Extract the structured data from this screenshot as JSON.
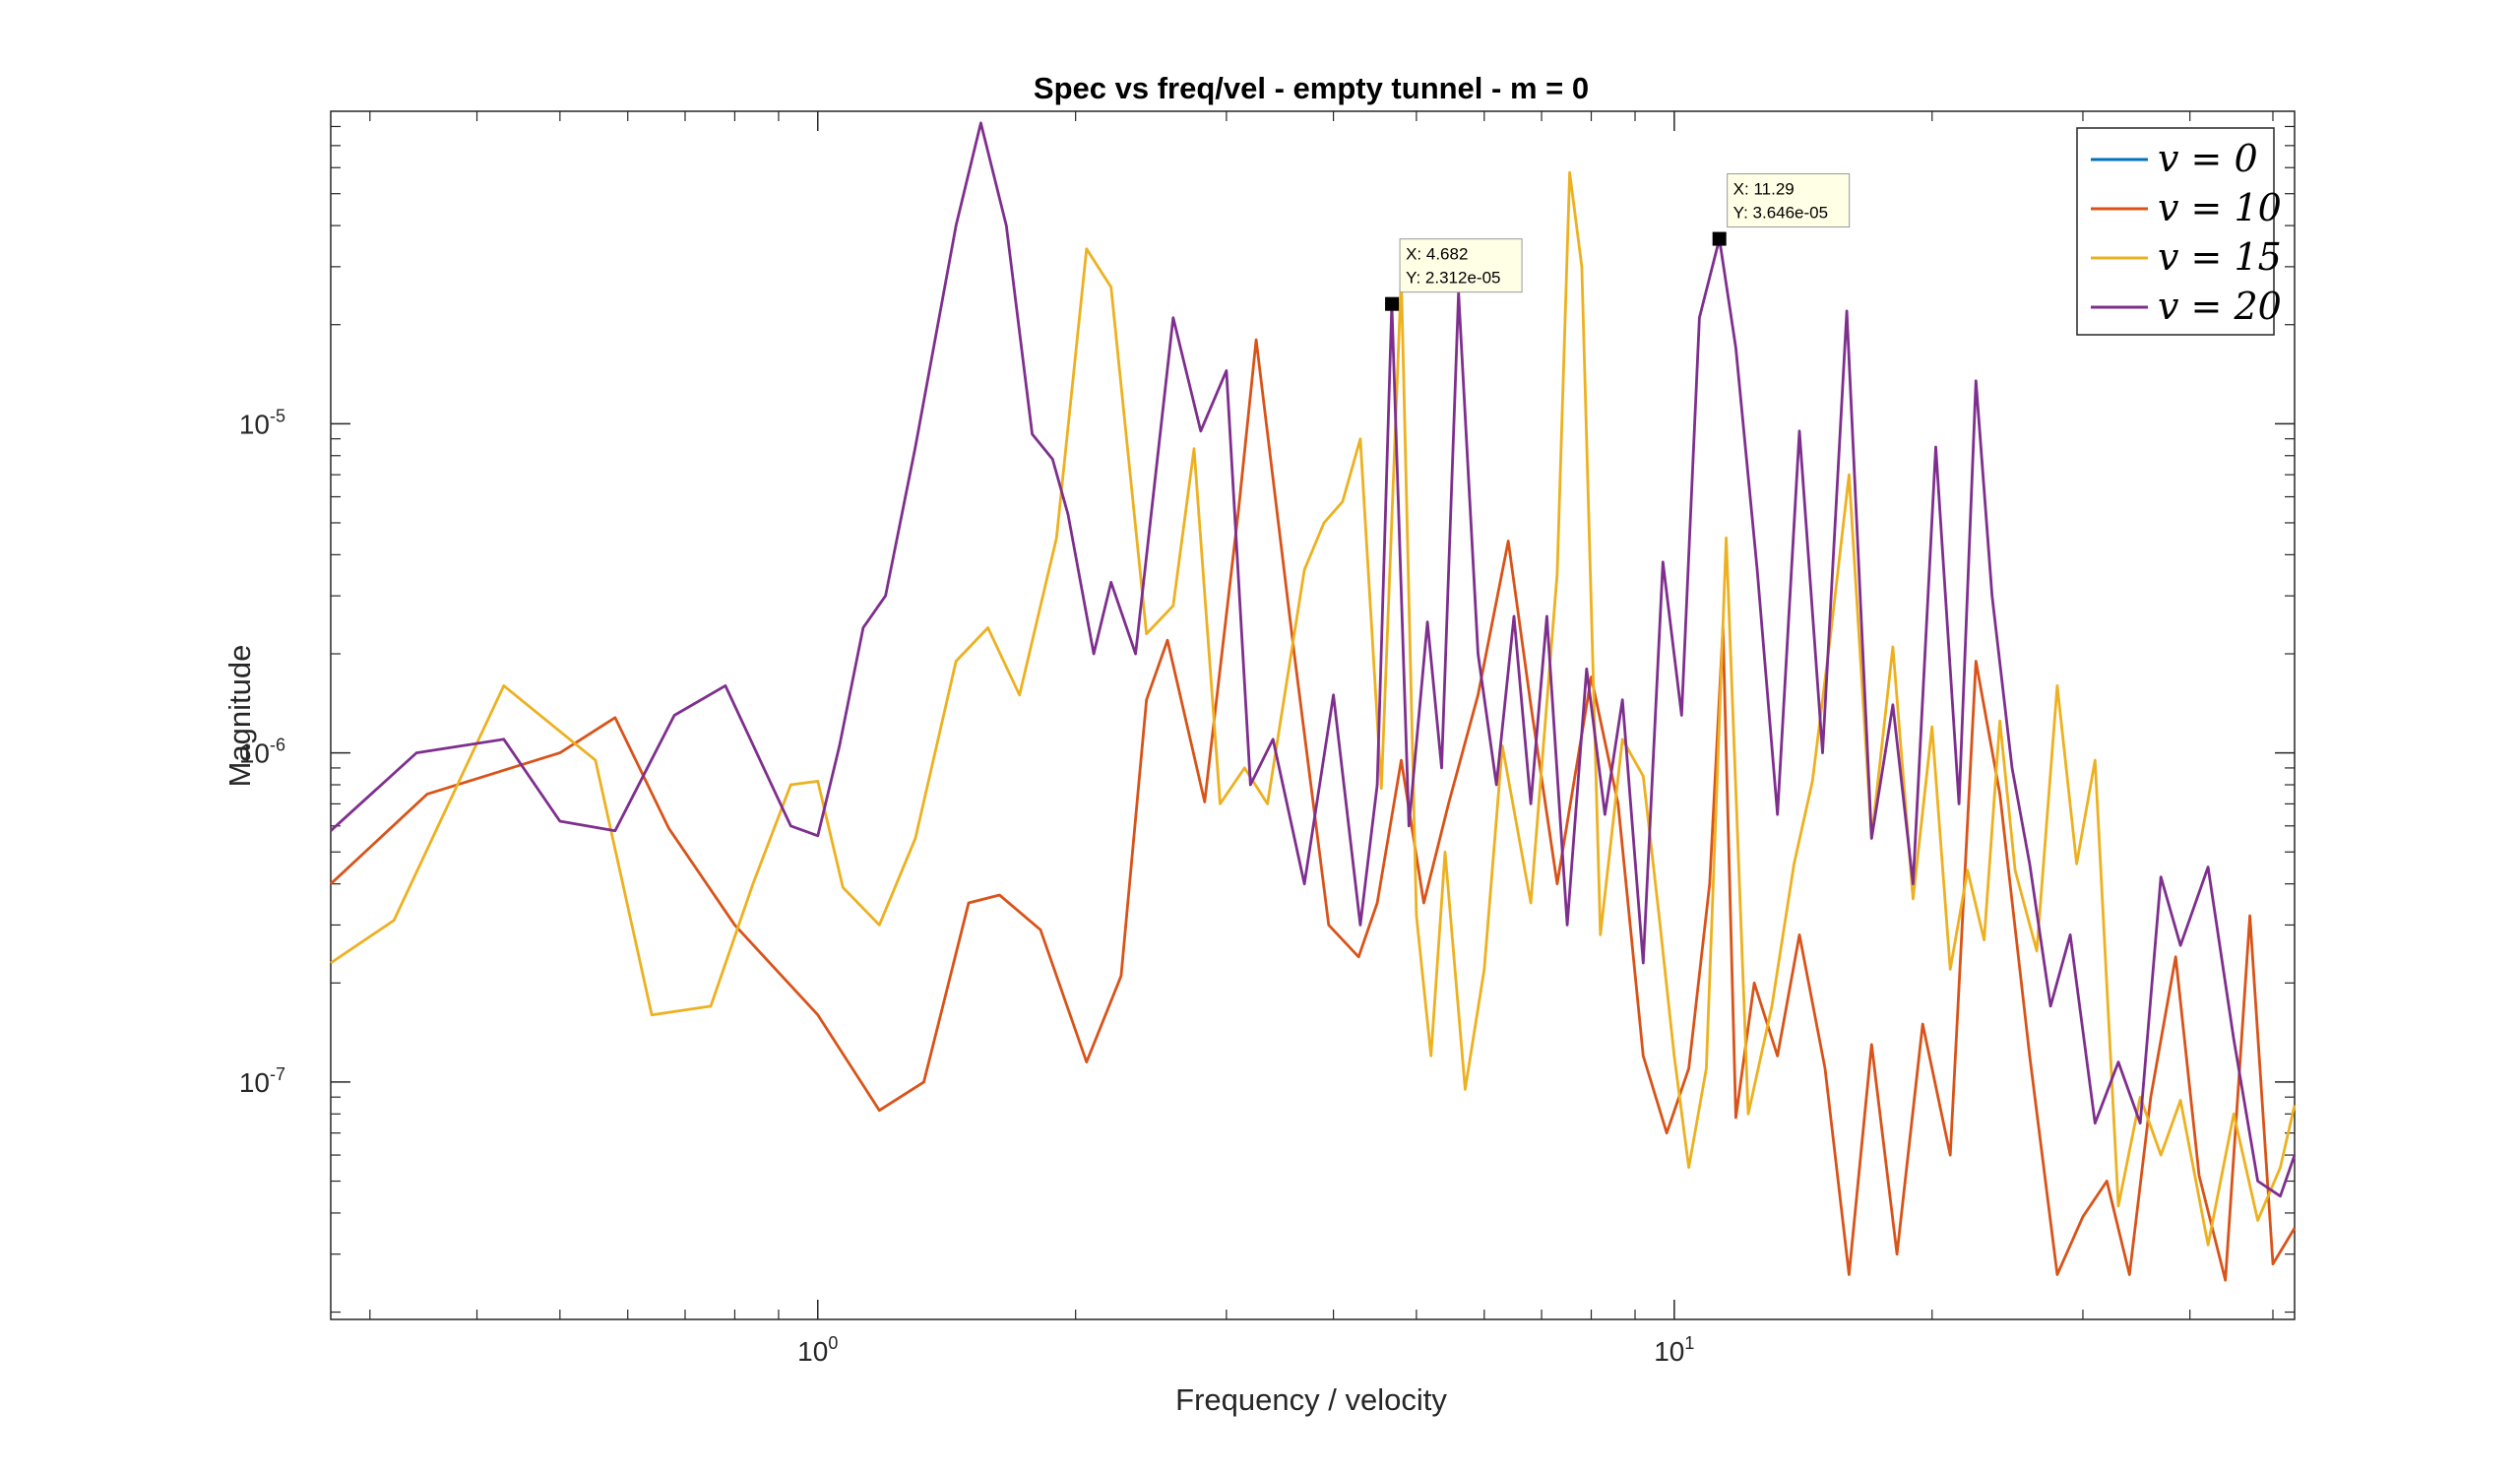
{
  "chart_data": {
    "type": "line",
    "title": "Spec vs freq/vel - empty tunnel - m = 0",
    "xlabel": "Frequency / velocity",
    "ylabel": "Magnitude",
    "x_scale": "log",
    "y_scale": "log",
    "xlim": [
      0.27,
      53
    ],
    "ylim": [
      1.9e-08,
      8.9e-05
    ],
    "x_ticks": [
      {
        "value": 1,
        "base": "10",
        "exp": "0"
      },
      {
        "value": 10,
        "base": "10",
        "exp": "1"
      }
    ],
    "y_ticks": [
      {
        "value": 1e-05,
        "base": "10",
        "exp": "-5"
      },
      {
        "value": 1e-06,
        "base": "10",
        "exp": "-6"
      },
      {
        "value": 1e-07,
        "base": "10",
        "exp": "-7"
      }
    ],
    "grid": false,
    "legend_position": "top-right",
    "series": [
      {
        "name": "v = 0",
        "legend_label": "v = 0",
        "color": "#0072BD",
        "x": [],
        "y": []
      },
      {
        "name": "v = 10",
        "legend_label": "v = 10",
        "color": "#D95319",
        "x": [
          0.27,
          0.35,
          0.5,
          0.58,
          0.67,
          0.8,
          1.0,
          1.18,
          1.33,
          1.5,
          1.63,
          1.82,
          2.06,
          2.26,
          2.42,
          2.56,
          2.83,
          3.1,
          3.25,
          3.6,
          3.95,
          4.28,
          4.5,
          4.8,
          5.1,
          5.45,
          5.9,
          6.4,
          6.8,
          7.3,
          8.0,
          8.6,
          9.2,
          9.8,
          10.4,
          11.0,
          11.4,
          11.8,
          12.4,
          13.2,
          14.0,
          15.0,
          16.0,
          17.0,
          18.2,
          19.5,
          21.0,
          22.5,
          24.0,
          26.0,
          28.0,
          30.0,
          32.0,
          34.0,
          36.0,
          38.5,
          41.0,
          44.0,
          47.0,
          50.0,
          53.0
        ],
        "y": [
          4e-07,
          7.5e-07,
          1e-06,
          1.28e-06,
          5.9e-07,
          3e-07,
          1.6e-07,
          8.2e-08,
          1e-07,
          3.5e-07,
          3.7e-07,
          2.9e-07,
          1.15e-07,
          2.1e-07,
          1.45e-06,
          2.2e-06,
          7.1e-07,
          5.5e-06,
          1.8e-05,
          2e-06,
          3e-07,
          2.4e-07,
          3.5e-07,
          9.5e-07,
          3.5e-07,
          7e-07,
          1.5e-06,
          4.4e-06,
          1.4e-06,
          4e-07,
          1.7e-06,
          7e-07,
          1.2e-07,
          7e-08,
          1.1e-07,
          4e-07,
          2.4e-06,
          7.8e-08,
          2e-07,
          1.2e-07,
          2.8e-07,
          1.1e-07,
          2.6e-08,
          1.3e-07,
          3e-08,
          1.5e-07,
          6e-08,
          1.9e-06,
          7.5e-07,
          1.2e-07,
          2.6e-08,
          3.9e-08,
          5e-08,
          2.6e-08,
          9e-08,
          2.4e-07,
          5.2e-08,
          2.5e-08,
          3.2e-07,
          2.8e-08,
          3.6e-08
        ]
      },
      {
        "name": "v = 15",
        "legend_label": "v = 15",
        "color": "#EDB120",
        "x": [
          0.27,
          0.32,
          0.43,
          0.55,
          0.64,
          0.75,
          0.84,
          0.93,
          1.0,
          1.07,
          1.18,
          1.3,
          1.45,
          1.58,
          1.72,
          1.9,
          2.06,
          2.2,
          2.42,
          2.6,
          2.75,
          2.95,
          3.15,
          3.35,
          3.7,
          3.9,
          4.1,
          4.3,
          4.55,
          4.8,
          5.0,
          5.2,
          5.4,
          5.7,
          6.0,
          6.3,
          6.8,
          7.3,
          7.55,
          7.8,
          8.2,
          8.7,
          9.2,
          9.6,
          10.0,
          10.4,
          10.9,
          11.5,
          12.2,
          13.0,
          13.8,
          14.5,
          15.2,
          16.0,
          17.0,
          18.0,
          19.0,
          20.0,
          21.0,
          22.0,
          23.0,
          24.0,
          25.0,
          26.5,
          28.0,
          29.5,
          31.0,
          33.0,
          35.0,
          37.0,
          39.0,
          42.0,
          45.0,
          48.0,
          51.0,
          53.0
        ],
        "y": [
          2.3e-07,
          3.1e-07,
          1.6e-06,
          9.5e-07,
          1.6e-07,
          1.7e-07,
          4e-07,
          8e-07,
          8.2e-07,
          3.9e-07,
          3e-07,
          5.5e-07,
          1.9e-06,
          2.4e-06,
          1.5e-06,
          4.5e-06,
          3.4e-05,
          2.6e-05,
          2.3e-06,
          2.8e-06,
          8.4e-06,
          7e-07,
          9e-07,
          7e-07,
          3.6e-06,
          5e-06,
          5.8e-06,
          9e-06,
          7.8e-07,
          2.8e-05,
          3.2e-07,
          1.2e-07,
          5e-07,
          9.5e-08,
          2.2e-07,
          1.05e-06,
          3.5e-07,
          3.5e-06,
          5.8e-05,
          3e-05,
          2.8e-07,
          1.1e-06,
          8.5e-07,
          3.2e-07,
          1.2e-07,
          5.5e-08,
          1.1e-07,
          4.5e-06,
          8e-08,
          1.7e-07,
          4.6e-07,
          8.2e-07,
          2.2e-06,
          7e-06,
          5.5e-07,
          2.1e-06,
          3.6e-07,
          1.2e-06,
          2.2e-07,
          4.4e-07,
          2.7e-07,
          1.25e-06,
          4.4e-07,
          2.5e-07,
          1.6e-06,
          4.6e-07,
          9.5e-07,
          4.2e-08,
          9e-08,
          6e-08,
          8.8e-08,
          3.2e-08,
          8e-08,
          3.8e-08,
          5.5e-08,
          8.5e-08
        ]
      },
      {
        "name": "v = 20",
        "legend_label": "v = 20",
        "color": "#7E2F8E",
        "x": [
          0.27,
          0.34,
          0.43,
          0.5,
          0.58,
          0.68,
          0.78,
          0.93,
          1.0,
          1.06,
          1.13,
          1.2,
          1.3,
          1.45,
          1.55,
          1.66,
          1.78,
          1.88,
          1.96,
          2.1,
          2.2,
          2.35,
          2.6,
          2.8,
          3.0,
          3.2,
          3.4,
          3.7,
          4.0,
          4.3,
          4.5,
          4.68,
          4.9,
          5.15,
          5.35,
          5.6,
          5.9,
          6.2,
          6.5,
          6.8,
          7.1,
          7.5,
          7.9,
          8.3,
          8.7,
          9.2,
          9.7,
          10.2,
          10.7,
          11.29,
          11.8,
          12.5,
          13.2,
          14.0,
          14.9,
          15.9,
          17.0,
          18.0,
          19.0,
          20.2,
          21.5,
          22.5,
          23.5,
          24.8,
          26.0,
          27.5,
          29.0,
          31.0,
          33.0,
          35.0,
          37.0,
          39.0,
          42.0,
          45.0,
          48.0,
          51.0,
          53.0
        ],
        "y": [
          5.8e-07,
          1e-06,
          1.1e-06,
          6.2e-07,
          5.8e-07,
          1.3e-06,
          1.6e-06,
          6e-07,
          5.6e-07,
          1.05e-06,
          2.4e-06,
          3e-06,
          8.5e-06,
          4e-05,
          8.2e-05,
          4e-05,
          9.3e-06,
          7.8e-06,
          5.3e-06,
          2e-06,
          3.3e-06,
          2e-06,
          2.1e-05,
          9.5e-06,
          1.45e-05,
          8e-07,
          1.1e-06,
          4e-07,
          1.5e-06,
          3e-07,
          8e-07,
          2.312e-05,
          6e-07,
          2.5e-06,
          9e-07,
          2.5e-05,
          2e-06,
          8e-07,
          2.6e-06,
          7e-07,
          2.6e-06,
          3e-07,
          1.8e-06,
          6.5e-07,
          1.45e-06,
          2.3e-07,
          3.8e-06,
          1.3e-06,
          2.1e-05,
          3.646e-05,
          1.7e-05,
          3.6e-06,
          6.5e-07,
          9.5e-06,
          1e-06,
          2.2e-05,
          5.5e-07,
          1.4e-06,
          4e-07,
          8.5e-06,
          7e-07,
          1.35e-05,
          3e-06,
          9e-07,
          4.6e-07,
          1.7e-07,
          2.8e-07,
          7.5e-08,
          1.15e-07,
          7.5e-08,
          4.2e-07,
          2.6e-07,
          4.5e-07,
          1.35e-07,
          5e-08,
          4.5e-08,
          6e-08
        ]
      }
    ],
    "annotations": [
      {
        "x": 4.682,
        "y": 2.312e-05,
        "line1": "X: 4.682",
        "line2": "Y: 2.312e-05"
      },
      {
        "x": 11.29,
        "y": 3.646e-05,
        "line1": "X: 11.29",
        "line2": "Y: 3.646e-05"
      }
    ]
  }
}
